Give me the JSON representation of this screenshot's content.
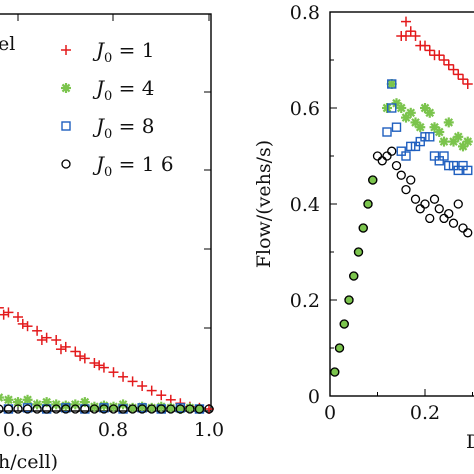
{
  "colors": {
    "J1": "#e31a1c",
    "J4": "#33a02c",
    "J8": "#1f5fbf",
    "J16": "#000000",
    "J4_fill": "#7bc44d"
  },
  "chart_data": [
    {
      "type": "scatter",
      "title": "",
      "xlabel": "h/cell)",
      "ylabel": "",
      "corner_text": "el",
      "xlim": [
        0.45,
        1.0
      ],
      "x_ticks": [
        "0.6",
        "0.8",
        "1.0"
      ],
      "legend_placement": "top-right",
      "series": [
        {
          "name": "J0 = 1",
          "label_main": "J",
          "label_sub": "0",
          "label_rest": " = 1",
          "marker": "plus",
          "color": "#e31a1c",
          "points": [
            [
              0.46,
              0.58
            ],
            [
              0.48,
              0.54
            ],
            [
              0.5,
              0.52
            ],
            [
              0.52,
              0.49
            ],
            [
              0.54,
              0.47
            ],
            [
              0.56,
              0.44
            ],
            [
              0.58,
              0.42
            ],
            [
              0.6,
              0.4
            ],
            [
              0.62,
              0.36
            ],
            [
              0.64,
              0.34
            ],
            [
              0.66,
              0.31
            ],
            [
              0.68,
              0.3
            ],
            [
              0.7,
              0.27
            ],
            [
              0.72,
              0.25
            ],
            [
              0.74,
              0.22
            ],
            [
              0.76,
              0.2
            ],
            [
              0.78,
              0.18
            ],
            [
              0.8,
              0.16
            ],
            [
              0.82,
              0.14
            ],
            [
              0.84,
              0.12
            ],
            [
              0.86,
              0.1
            ],
            [
              0.88,
              0.08
            ],
            [
              0.9,
              0.06
            ],
            [
              0.92,
              0.04
            ],
            [
              0.94,
              0.025
            ],
            [
              0.96,
              0.01
            ],
            [
              0.98,
              0.005
            ],
            [
              1.0,
              0.0
            ],
            [
              0.47,
              0.55
            ],
            [
              0.53,
              0.46
            ],
            [
              0.57,
              0.41
            ],
            [
              0.61,
              0.37
            ],
            [
              0.65,
              0.3
            ],
            [
              0.69,
              0.26
            ],
            [
              0.73,
              0.23
            ],
            [
              0.77,
              0.19
            ]
          ]
        },
        {
          "name": "J0 = 4",
          "label_main": "J",
          "label_sub": "0",
          "label_rest": " = 4",
          "marker": "star",
          "color": "#7bc44d",
          "points": [
            [
              0.46,
              0.13
            ],
            [
              0.48,
              0.11
            ],
            [
              0.5,
              0.1
            ],
            [
              0.52,
              0.07
            ],
            [
              0.54,
              0.06
            ],
            [
              0.56,
              0.05
            ],
            [
              0.58,
              0.04
            ],
            [
              0.6,
              0.03
            ],
            [
              0.62,
              0.04
            ],
            [
              0.64,
              0.02
            ],
            [
              0.66,
              0.03
            ],
            [
              0.68,
              0.02
            ],
            [
              0.7,
              0.015
            ],
            [
              0.72,
              0.02
            ],
            [
              0.74,
              0.03
            ],
            [
              0.76,
              0.01
            ],
            [
              0.78,
              0.015
            ],
            [
              0.8,
              0.01
            ],
            [
              0.82,
              0.02
            ],
            [
              0.84,
              0.005
            ],
            [
              0.86,
              0.01
            ],
            [
              0.88,
              0.005
            ],
            [
              0.9,
              0.01
            ],
            [
              0.92,
              0.005
            ],
            [
              0.94,
              0.0
            ],
            [
              0.96,
              0.005
            ],
            [
              0.98,
              0.0
            ]
          ]
        },
        {
          "name": "J0 = 8",
          "label_main": "J",
          "label_sub": "0",
          "label_rest": " = 8",
          "marker": "square",
          "color": "#1f5fbf",
          "points": [
            [
              0.46,
              0.005
            ],
            [
              0.5,
              0.0
            ],
            [
              0.54,
              0.005
            ],
            [
              0.58,
              0.0
            ],
            [
              0.62,
              0.005
            ],
            [
              0.66,
              0.0
            ],
            [
              0.7,
              0.005
            ],
            [
              0.74,
              0.0
            ],
            [
              0.78,
              0.005
            ],
            [
              0.82,
              0.0
            ],
            [
              0.86,
              0.005
            ],
            [
              0.9,
              0.0
            ],
            [
              0.94,
              0.005
            ],
            [
              0.98,
              0.0
            ]
          ]
        },
        {
          "name": "J0 = 1 6",
          "label_main": "J",
          "label_sub": "0",
          "label_rest": " = 1 6",
          "marker": "circle",
          "color": "#000000",
          "points": [
            [
              0.46,
              0.0
            ],
            [
              0.48,
              0.0
            ],
            [
              0.5,
              0.0
            ],
            [
              0.52,
              0.0
            ],
            [
              0.54,
              0.0
            ],
            [
              0.56,
              0.0
            ],
            [
              0.58,
              0.0
            ],
            [
              0.6,
              0.0
            ],
            [
              0.62,
              0.0
            ],
            [
              0.64,
              0.0
            ],
            [
              0.66,
              0.0
            ],
            [
              0.68,
              0.0
            ],
            [
              0.7,
              0.0
            ],
            [
              0.72,
              0.0
            ],
            [
              0.74,
              0.0
            ],
            [
              0.76,
              0.0
            ],
            [
              0.78,
              0.0
            ],
            [
              0.8,
              0.0
            ],
            [
              0.82,
              0.0
            ],
            [
              0.84,
              0.0
            ],
            [
              0.86,
              0.0
            ],
            [
              0.88,
              0.0
            ],
            [
              0.9,
              0.0
            ],
            [
              0.92,
              0.0
            ],
            [
              0.94,
              0.0
            ],
            [
              0.96,
              0.0
            ],
            [
              0.98,
              0.0
            ],
            [
              1.0,
              0.0
            ]
          ]
        }
      ]
    },
    {
      "type": "scatter",
      "title": "",
      "xlabel": "D",
      "ylabel": "Flow/(vehs/s)",
      "xlim": [
        0.0,
        0.35
      ],
      "ylim": [
        0.0,
        0.8
      ],
      "x_ticks": [
        "0",
        "0.2"
      ],
      "y_ticks": [
        "0",
        "0.2",
        "0.4",
        "0.6",
        "0.8"
      ],
      "series": [
        {
          "name": "J0 = 1",
          "marker": "plus",
          "color": "#e31a1c",
          "points": [
            [
              0.16,
              0.78
            ],
            [
              0.17,
              0.76
            ],
            [
              0.15,
              0.75
            ],
            [
              0.16,
              0.75
            ],
            [
              0.18,
              0.75
            ],
            [
              0.19,
              0.73
            ],
            [
              0.2,
              0.73
            ],
            [
              0.21,
              0.72
            ],
            [
              0.22,
              0.71
            ],
            [
              0.23,
              0.71
            ],
            [
              0.24,
              0.7
            ],
            [
              0.25,
              0.69
            ],
            [
              0.26,
              0.68
            ],
            [
              0.27,
              0.67
            ],
            [
              0.28,
              0.66
            ],
            [
              0.29,
              0.65
            ],
            [
              0.3,
              0.64
            ],
            [
              0.31,
              0.63
            ]
          ]
        },
        {
          "name": "J0 = 4",
          "marker": "star",
          "color": "#7bc44d",
          "points": [
            [
              0.12,
              0.6
            ],
            [
              0.13,
              0.65
            ],
            [
              0.14,
              0.61
            ],
            [
              0.15,
              0.6
            ],
            [
              0.16,
              0.58
            ],
            [
              0.17,
              0.59
            ],
            [
              0.18,
              0.57
            ],
            [
              0.19,
              0.56
            ],
            [
              0.2,
              0.6
            ],
            [
              0.21,
              0.59
            ],
            [
              0.22,
              0.56
            ],
            [
              0.23,
              0.55
            ],
            [
              0.24,
              0.53
            ],
            [
              0.25,
              0.57
            ],
            [
              0.26,
              0.53
            ],
            [
              0.27,
              0.54
            ],
            [
              0.28,
              0.52
            ],
            [
              0.29,
              0.53
            ],
            [
              0.3,
              0.56
            ],
            [
              0.31,
              0.54
            ]
          ]
        },
        {
          "name": "J0 = 8",
          "marker": "square",
          "color": "#1f5fbf",
          "points": [
            [
              0.12,
              0.55
            ],
            [
              0.13,
              0.6
            ],
            [
              0.13,
              0.65
            ],
            [
              0.14,
              0.56
            ],
            [
              0.15,
              0.51
            ],
            [
              0.16,
              0.5
            ],
            [
              0.17,
              0.52
            ],
            [
              0.18,
              0.52
            ],
            [
              0.19,
              0.53
            ],
            [
              0.2,
              0.54
            ],
            [
              0.21,
              0.54
            ],
            [
              0.22,
              0.5
            ],
            [
              0.23,
              0.49
            ],
            [
              0.24,
              0.5
            ],
            [
              0.25,
              0.48
            ],
            [
              0.26,
              0.48
            ],
            [
              0.27,
              0.47
            ],
            [
              0.28,
              0.48
            ],
            [
              0.29,
              0.47
            ],
            [
              0.3,
              0.47
            ]
          ]
        },
        {
          "name": "J0 = 1 6",
          "marker": "circle",
          "color": "#000000",
          "points": [
            [
              0.01,
              0.05
            ],
            [
              0.02,
              0.1
            ],
            [
              0.03,
              0.15
            ],
            [
              0.04,
              0.2
            ],
            [
              0.05,
              0.25
            ],
            [
              0.06,
              0.3
            ],
            [
              0.07,
              0.35
            ],
            [
              0.08,
              0.4
            ],
            [
              0.09,
              0.45
            ],
            [
              0.1,
              0.5
            ],
            [
              0.11,
              0.49
            ],
            [
              0.12,
              0.5
            ],
            [
              0.13,
              0.51
            ],
            [
              0.14,
              0.48
            ],
            [
              0.15,
              0.46
            ],
            [
              0.16,
              0.43
            ],
            [
              0.17,
              0.45
            ],
            [
              0.18,
              0.41
            ],
            [
              0.19,
              0.39
            ],
            [
              0.2,
              0.4
            ],
            [
              0.21,
              0.37
            ],
            [
              0.22,
              0.41
            ],
            [
              0.23,
              0.39
            ],
            [
              0.24,
              0.37
            ],
            [
              0.25,
              0.38
            ],
            [
              0.26,
              0.36
            ],
            [
              0.27,
              0.4
            ],
            [
              0.28,
              0.35
            ],
            [
              0.29,
              0.34
            ],
            [
              0.3,
              0.36
            ]
          ]
        },
        {
          "name": "J0 = 1 6 (filled)",
          "marker": "filled",
          "color": "#000000",
          "points": [
            [
              0.01,
              0.05
            ],
            [
              0.02,
              0.1
            ],
            [
              0.03,
              0.15
            ],
            [
              0.04,
              0.2
            ],
            [
              0.05,
              0.25
            ],
            [
              0.06,
              0.3
            ],
            [
              0.07,
              0.35
            ],
            [
              0.08,
              0.4
            ],
            [
              0.09,
              0.45
            ]
          ]
        }
      ]
    }
  ]
}
